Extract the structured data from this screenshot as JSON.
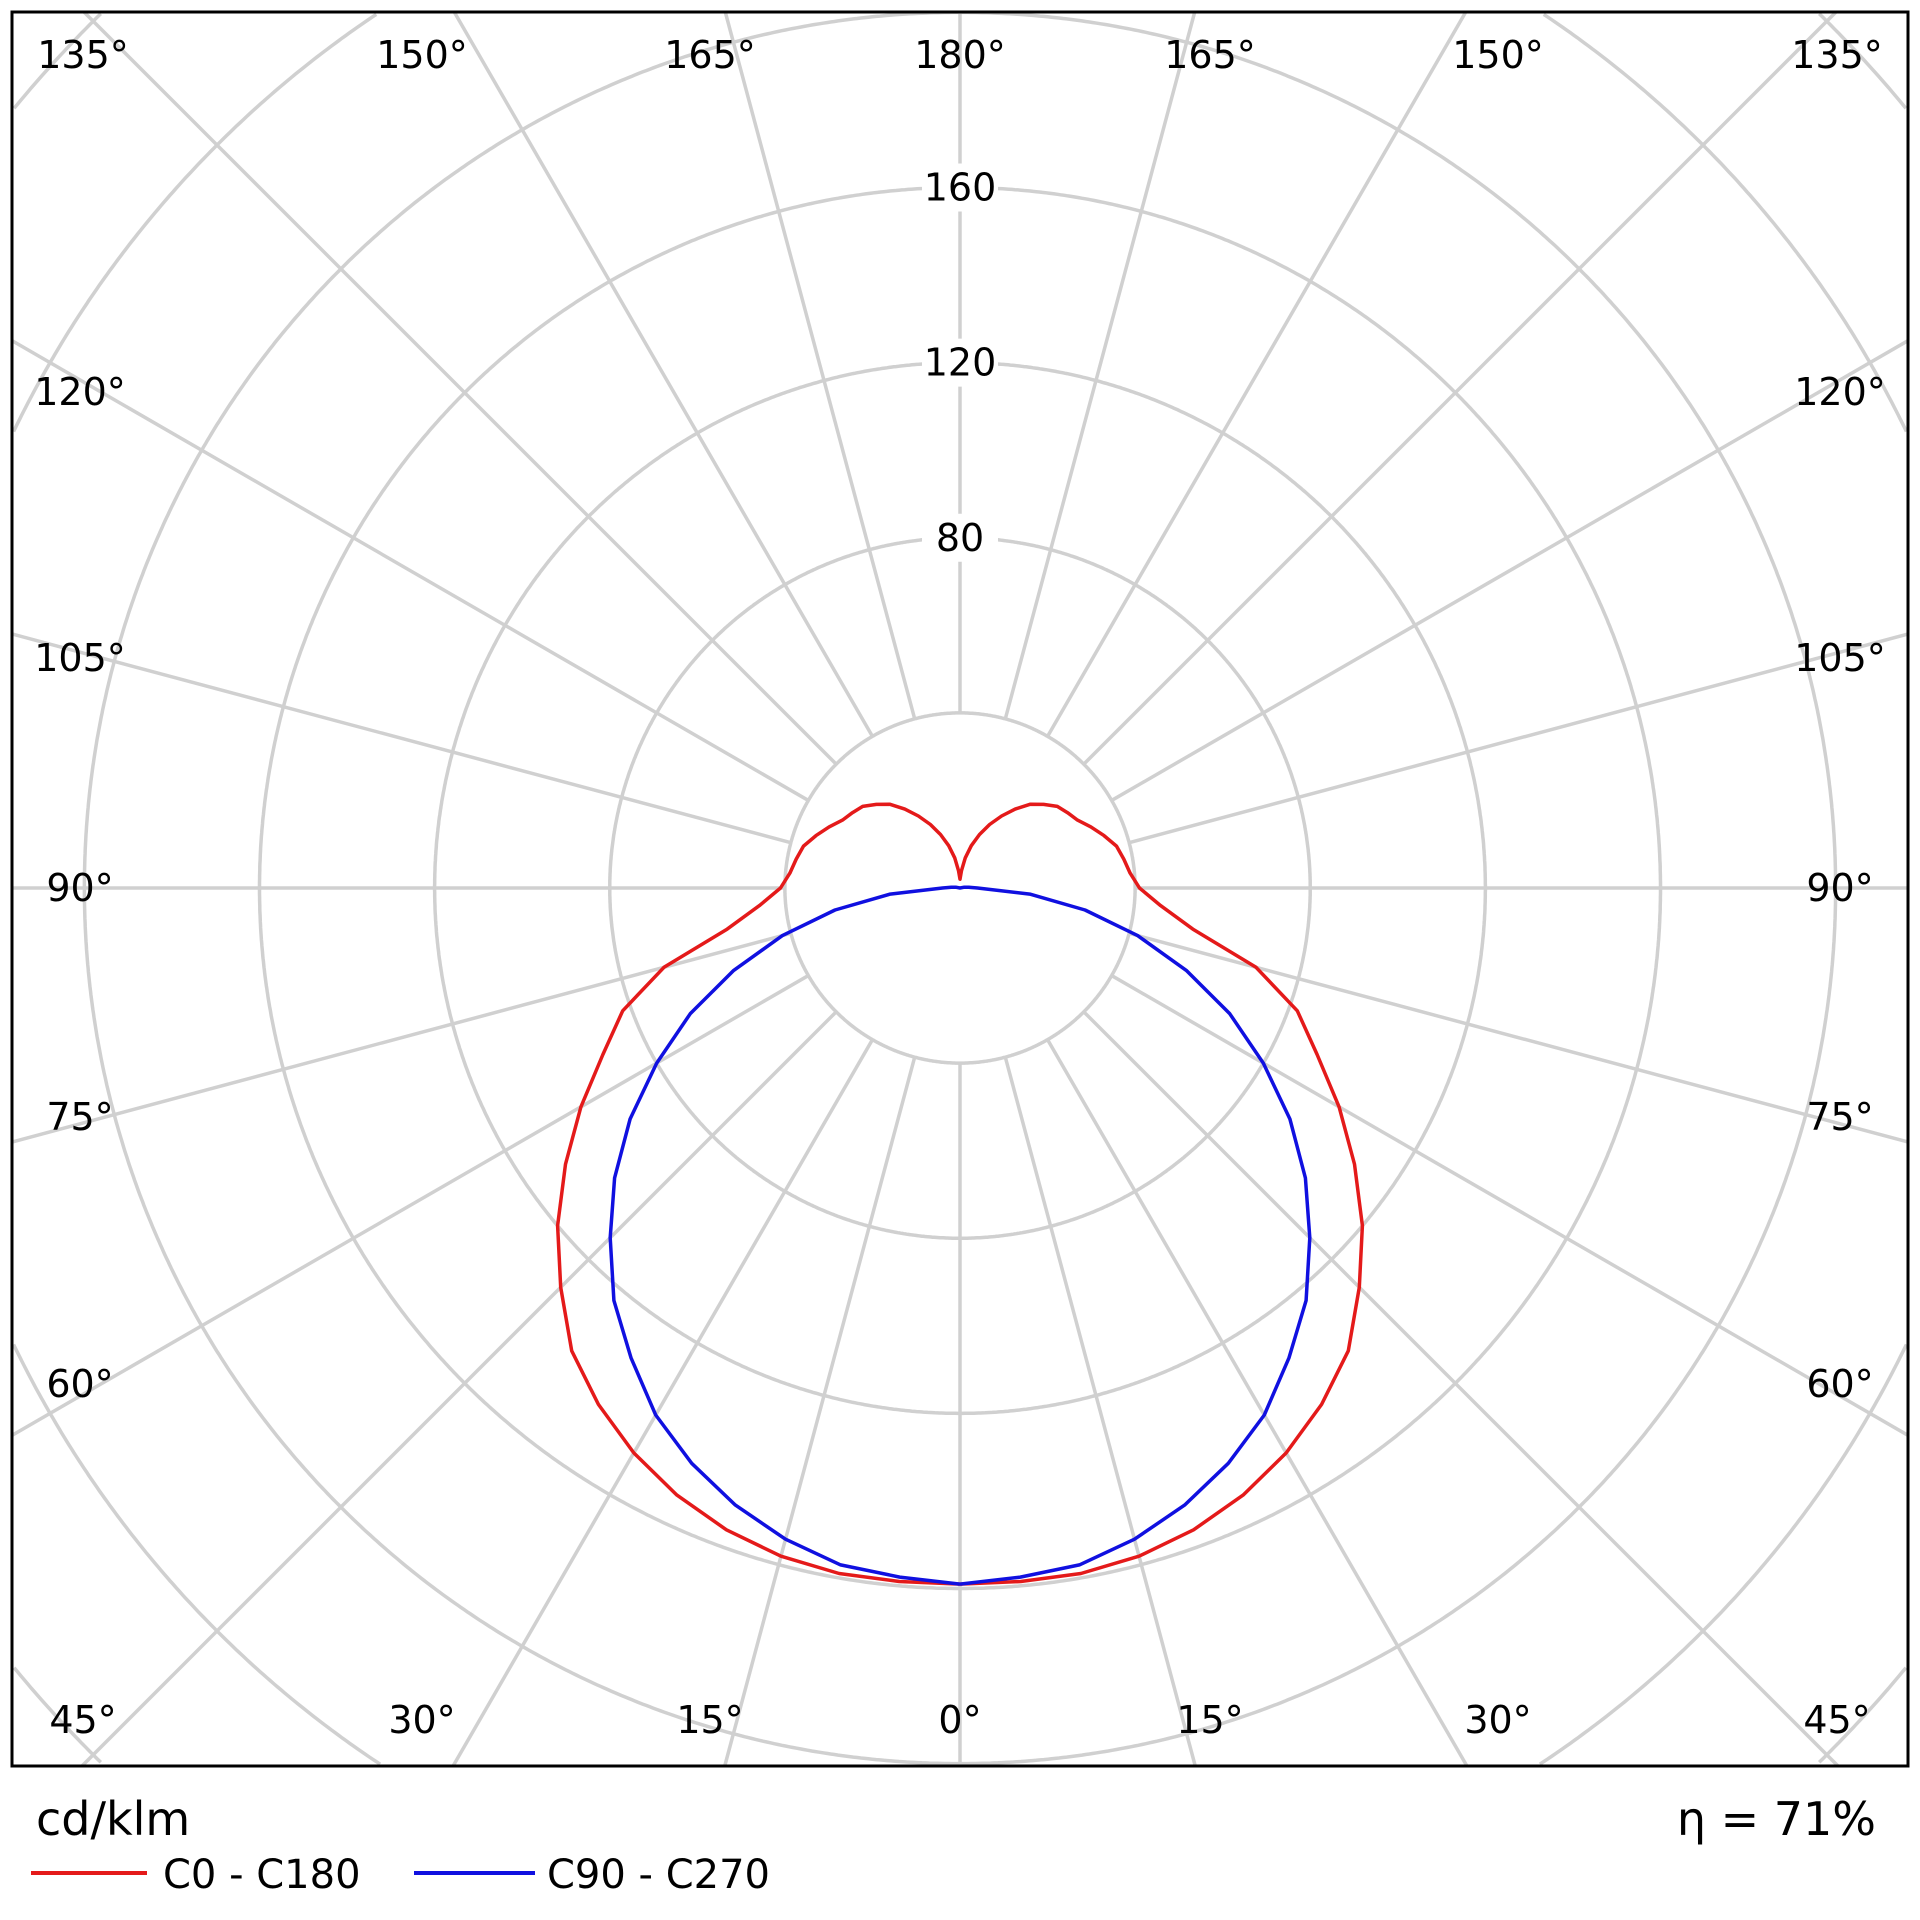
{
  "chart_data": {
    "type": "polar",
    "unit": "cd/klm",
    "efficiency": "η = 71%",
    "radial_ticks": [
      40,
      80,
      120,
      160,
      200,
      240,
      280
    ],
    "radial_tick_labels": [
      "80",
      "120",
      "160"
    ],
    "angle_labels": {
      "top": [
        "135°",
        "150°",
        "165°",
        "180°",
        "165°",
        "150°",
        "135°"
      ],
      "left": [
        "120°",
        "105°",
        "90°",
        "75°",
        "60°"
      ],
      "right": [
        "120°",
        "105°",
        "90°",
        "75°",
        "60°"
      ],
      "bottom": [
        "45°",
        "30°",
        "15°",
        "0°",
        "15°",
        "30°",
        "45°"
      ]
    },
    "grid": true,
    "legend_placement": "bottom-left",
    "angles_deg": [
      0,
      5,
      10,
      15,
      20,
      25,
      30,
      35,
      40,
      45,
      50,
      55,
      60,
      65,
      70,
      75,
      80,
      85,
      90,
      95,
      100,
      105,
      110,
      115,
      120,
      125,
      130,
      135,
      140,
      145,
      150,
      155,
      160,
      165,
      170,
      175,
      180
    ],
    "series": [
      {
        "name": "C0 - C180",
        "color": "#e41a1a",
        "values": [
          159,
          159,
          159,
          158,
          156,
          153,
          149,
          144,
          138,
          129,
          120,
          110,
          100,
          90,
          82,
          70,
          54,
          46,
          41,
          39,
          38,
          37,
          35,
          33,
          31,
          30,
          29,
          27,
          25,
          22,
          19,
          16,
          13,
          10,
          7,
          4,
          2
        ]
      },
      {
        "name": "C90 - C270",
        "color": "#1010e0",
        "values": [
          159,
          158,
          157,
          154,
          150,
          145,
          139,
          131,
          123,
          113,
          103,
          92,
          80,
          68,
          55,
          42,
          29,
          16,
          4,
          2,
          1,
          0,
          0,
          0,
          0,
          0,
          0,
          0,
          0,
          0,
          0,
          0,
          0,
          0,
          0,
          0,
          0
        ]
      }
    ]
  }
}
